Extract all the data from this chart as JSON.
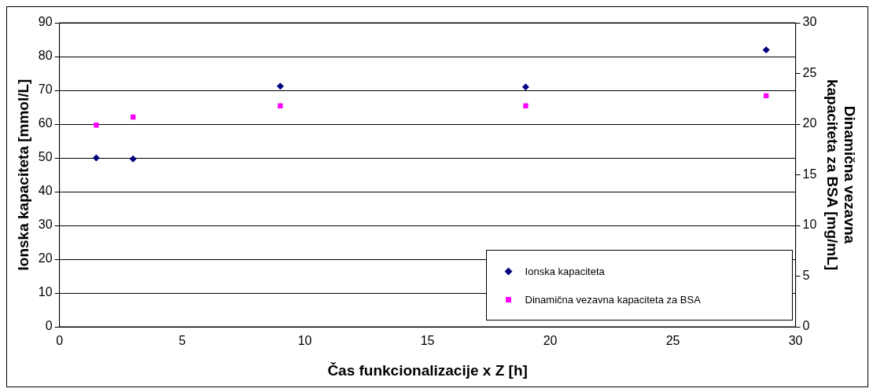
{
  "chart_data": {
    "type": "scatter",
    "xlabel": "Čas funkcionalizacije x Z [h]",
    "ylabel": "Ionska kapaciteta [mmol/L]",
    "y2label": "Dinamična vezavna kapaciteta za BSA [mg/mL]",
    "xlim": [
      0,
      30
    ],
    "xticks": [
      0,
      5,
      10,
      15,
      20,
      25,
      30
    ],
    "ylim": [
      0,
      90
    ],
    "yticks": [
      0,
      10,
      20,
      30,
      40,
      50,
      60,
      70,
      80,
      90
    ],
    "y2lim": [
      0,
      30
    ],
    "y2ticks": [
      0,
      5,
      10,
      15,
      20,
      25,
      30
    ],
    "grid": "y",
    "legend": "bottom right",
    "series": [
      {
        "name": "Ionska kapaciteta",
        "color": "#000080",
        "marker": "diamond",
        "x": [
          1.5,
          3,
          9,
          19,
          28.8
        ],
        "values": [
          50,
          49.7,
          71.2,
          71,
          82
        ]
      },
      {
        "name": "Dinamična vezavna kapaciteta za BSA",
        "color": "#ff00ff",
        "marker": "square",
        "axis": "y2",
        "x": [
          1.5,
          3,
          9,
          19,
          28.8
        ],
        "values": [
          19.9,
          20.7,
          21.8,
          21.8,
          22.8
        ]
      }
    ]
  }
}
